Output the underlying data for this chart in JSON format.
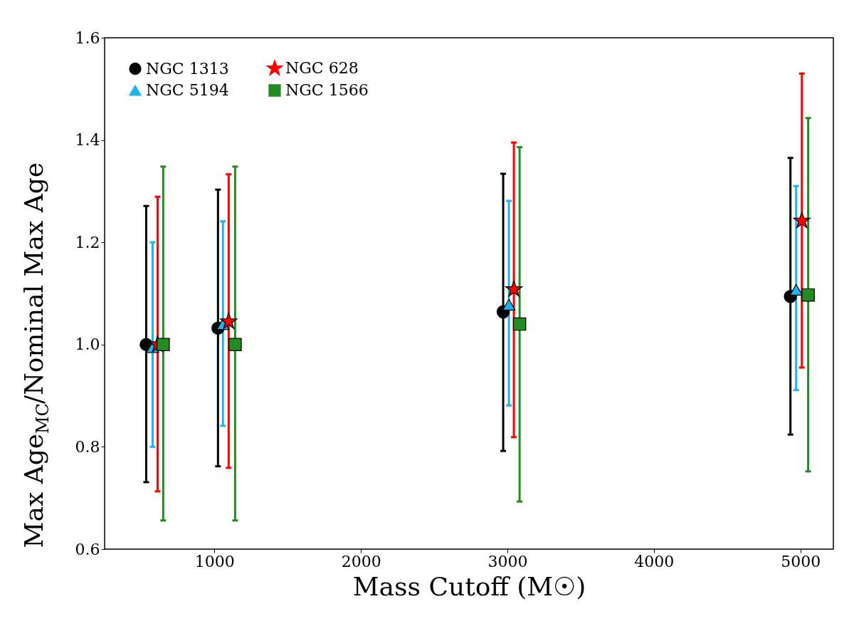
{
  "chart_data": {
    "type": "scatter",
    "xlabel": "Mass Cutoff (M☉)",
    "ylabel": "Max Age$_{MC}$/Nominal Max Age",
    "xlim": [
      250,
      5225
    ],
    "xticks": [
      1000,
      2000,
      3000,
      4000,
      5000
    ],
    "ylim": [
      0.6,
      1.6
    ],
    "yticks": [
      {
        "value": 0.6,
        "label": "0.6"
      },
      {
        "value": 0.8,
        "label": "0.8"
      },
      {
        "value": 1.0,
        "label": "1.0"
      },
      {
        "value": 1.2,
        "label": "1.2"
      },
      {
        "value": 1.4,
        "label": "1.4"
      },
      {
        "value": 1.6,
        "label": "1.6"
      }
    ],
    "grid": false,
    "legend": "top left",
    "series": [
      {
        "name": "NGC 1313",
        "color": "#000000",
        "marker": "circle",
        "x": [
          534,
          1024,
          2971,
          4932
        ],
        "values": [
          1.0,
          1.032,
          1.064,
          1.094
        ],
        "errors": [
          [
            0.731,
            1.271
          ],
          [
            0.762,
            1.303
          ],
          [
            0.792,
            1.334
          ],
          [
            0.824,
            1.365
          ]
        ]
      },
      {
        "name": "NGC 5194",
        "color": "#1eb4f0",
        "marker": "triangle",
        "x": [
          578,
          1058,
          3010,
          4971
        ],
        "values": [
          0.995,
          1.04,
          1.078,
          1.107
        ],
        "errors": [
          [
            0.8,
            1.2
          ],
          [
            0.841,
            1.241
          ],
          [
            0.881,
            1.281
          ],
          [
            0.911,
            1.31
          ]
        ]
      },
      {
        "name": "NGC 628",
        "color": "#ff0000",
        "marker": "star",
        "x": [
          612,
          1097,
          3044,
          5010
        ],
        "values": [
          1.0,
          1.045,
          1.108,
          1.242
        ],
        "errors": [
          [
            0.713,
            1.289
          ],
          [
            0.759,
            1.333
          ],
          [
            0.819,
            1.395
          ],
          [
            0.955,
            1.53
          ]
        ]
      },
      {
        "name": "NGC 1566",
        "color": "#228b22",
        "marker": "square",
        "x": [
          650,
          1141,
          3083,
          5053
        ],
        "values": [
          1.0,
          1.0,
          1.04,
          1.097
        ],
        "errors": [
          [
            0.656,
            1.348
          ],
          [
            0.656,
            1.348
          ],
          [
            0.693,
            1.386
          ],
          [
            0.752,
            1.443
          ]
        ]
      }
    ]
  }
}
